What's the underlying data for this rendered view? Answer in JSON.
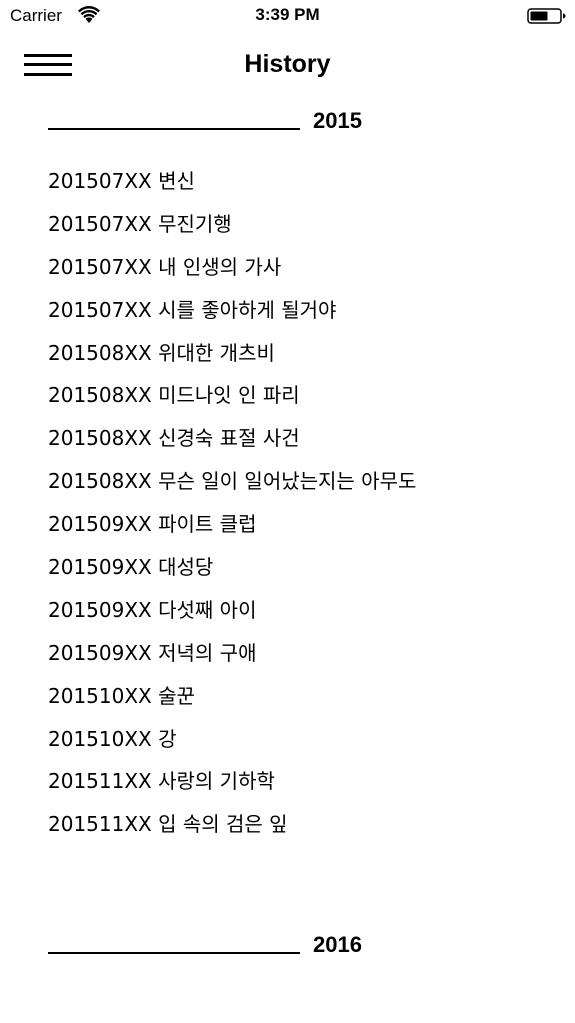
{
  "status_bar": {
    "carrier": "Carrier",
    "time": "3:39 PM"
  },
  "nav": {
    "title": "History"
  },
  "sections": [
    {
      "year": "2015",
      "items": [
        "201507XX 변신",
        "201507XX 무진기행",
        "201507XX 내 인생의 가사",
        "201507XX 시를 좋아하게 될거야",
        "201508XX 위대한 개츠비",
        "201508XX 미드나잇 인 파리",
        "201508XX 신경숙 표절 사건",
        "201508XX 무슨 일이 일어났는지는 아무도",
        "201509XX 파이트 클럽",
        "201509XX 대성당",
        "201509XX 다섯째 아이",
        "201509XX 저녁의 구애",
        "201510XX 술꾼",
        "201510XX 강",
        "201511XX 사랑의 기하학",
        "201511XX 입 속의 검은 잎"
      ]
    },
    {
      "year": "2016",
      "items": []
    }
  ]
}
